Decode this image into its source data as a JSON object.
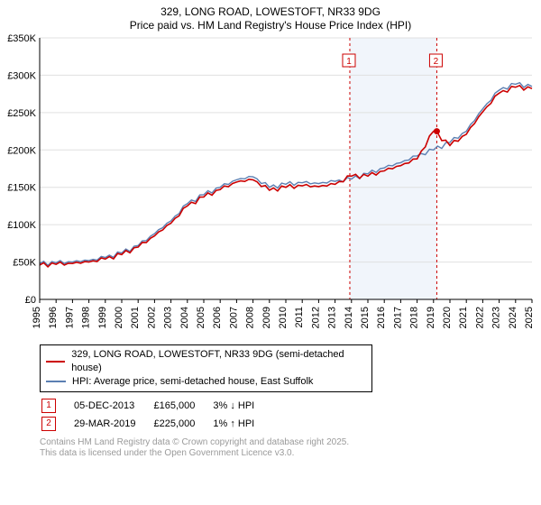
{
  "header": {
    "line1": "329, LONG ROAD, LOWESTOFT, NR33 9DG",
    "line2": "Price paid vs. HM Land Registry's House Price Index (HPI)"
  },
  "chart": {
    "type": "line",
    "background_color": "#ffffff",
    "grid_color": "#e0e0e0",
    "axis_color": "#000000",
    "marker_line_color": "#cc0000",
    "highlight_band_color": "#f1f5fb",
    "x_years": [
      "1995",
      "1996",
      "1997",
      "1998",
      "1999",
      "2000",
      "2001",
      "2002",
      "2003",
      "2004",
      "2005",
      "2006",
      "2007",
      "2008",
      "2009",
      "2010",
      "2011",
      "2012",
      "2013",
      "2014",
      "2015",
      "2016",
      "2017",
      "2018",
      "2019",
      "2020",
      "2021",
      "2022",
      "2023",
      "2024",
      "2025"
    ],
    "y_ticks": [
      0,
      50,
      100,
      150,
      200,
      250,
      300,
      350
    ],
    "y_tick_labels": [
      "£0",
      "£50K",
      "£100K",
      "£150K",
      "£200K",
      "£250K",
      "£300K",
      "£350K"
    ],
    "ylim": [
      0,
      350
    ],
    "highlight_band": {
      "x0_index": 18.9,
      "x1_index": 24.2
    },
    "markers": [
      {
        "n": "1",
        "x_index": 18.9
      },
      {
        "n": "2",
        "x_index": 24.2
      }
    ],
    "point_marker": {
      "x_index": 24.2,
      "y_value": 225,
      "color": "#cc0000"
    },
    "series": [
      {
        "name": "hpi",
        "color": "#5b7fb2",
        "width": 1.4,
        "values": [
          48,
          49,
          50,
          52,
          56,
          62,
          72,
          88,
          105,
          128,
          140,
          150,
          160,
          164,
          150,
          154,
          156,
          155,
          158,
          161,
          168,
          176,
          183,
          192,
          200,
          210,
          225,
          255,
          280,
          288,
          285
        ]
      },
      {
        "name": "price_paid",
        "color": "#cc0000",
        "width": 1.6,
        "values": [
          46,
          47,
          48,
          50,
          54,
          60,
          70,
          85,
          102,
          125,
          137,
          147,
          157,
          160,
          146,
          150,
          152,
          151,
          154,
          165,
          165,
          172,
          179,
          188,
          225,
          206,
          221,
          251,
          276,
          284,
          282
        ]
      }
    ],
    "label_fontsize": 11,
    "title_fontsize": 12
  },
  "legend": {
    "row1": {
      "color": "#cc0000",
      "label": "329, LONG ROAD, LOWESTOFT, NR33 9DG (semi-detached house)"
    },
    "row2": {
      "color": "#5b7fb2",
      "label": "HPI: Average price, semi-detached house, East Suffolk"
    }
  },
  "sales": [
    {
      "n": "1",
      "date": "05-DEC-2013",
      "price": "£165,000",
      "delta": "3% ↓ HPI"
    },
    {
      "n": "2",
      "date": "29-MAR-2019",
      "price": "£225,000",
      "delta": "1% ↑ HPI"
    }
  ],
  "footer": {
    "line1": "Contains HM Land Registry data © Crown copyright and database right 2025.",
    "line2": "This data is licensed under the Open Government Licence v3.0."
  }
}
